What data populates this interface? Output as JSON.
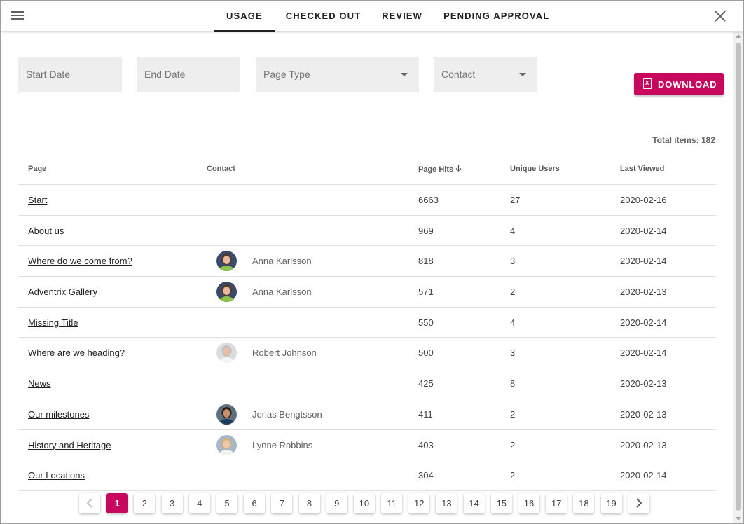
{
  "tabs": [
    {
      "label": "USAGE",
      "active": true
    },
    {
      "label": "CHECKED OUT",
      "active": false
    },
    {
      "label": "REVIEW",
      "active": false
    },
    {
      "label": "PENDING APPROVAL",
      "active": false
    }
  ],
  "filters": {
    "start_date": "Start Date",
    "end_date": "End Date",
    "page_type": "Page Type",
    "contact": "Contact"
  },
  "download_label": "DOWNLOAD",
  "total_items": "Total items: 182",
  "table": {
    "headers": {
      "page": "Page",
      "contact": "Contact",
      "hits": "Page Hits",
      "users": "Unique Users",
      "last_viewed": "Last Viewed"
    },
    "rows": [
      {
        "page": "Start",
        "contact": "",
        "avatar": "",
        "hits": "6663",
        "users": "27",
        "date": "2020-02-16"
      },
      {
        "page": "About us",
        "contact": "",
        "avatar": "",
        "hits": "969",
        "users": "4",
        "date": "2020-02-14"
      },
      {
        "page": "Where do we come from?",
        "contact": "Anna Karlsson",
        "avatar": "female-green",
        "hits": "818",
        "users": "3",
        "date": "2020-02-14"
      },
      {
        "page": "Adventrix Gallery",
        "contact": "Anna Karlsson",
        "avatar": "female-green",
        "hits": "571",
        "users": "2",
        "date": "2020-02-13"
      },
      {
        "page": "Missing Title",
        "contact": "",
        "avatar": "",
        "hits": "550",
        "users": "4",
        "date": "2020-02-14"
      },
      {
        "page": "Where are we heading?",
        "contact": "Robert Johnson",
        "avatar": "male-gray",
        "hits": "500",
        "users": "3",
        "date": "2020-02-14"
      },
      {
        "page": "News",
        "contact": "",
        "avatar": "",
        "hits": "425",
        "users": "8",
        "date": "2020-02-13"
      },
      {
        "page": "Our milestones",
        "contact": "Jonas Bengtsson",
        "avatar": "male-dark",
        "hits": "411",
        "users": "2",
        "date": "2020-02-13"
      },
      {
        "page": "History and Heritage",
        "contact": "Lynne Robbins",
        "avatar": "female-blonde",
        "hits": "403",
        "users": "2",
        "date": "2020-02-13"
      },
      {
        "page": "Our Locations",
        "contact": "",
        "avatar": "",
        "hits": "304",
        "users": "2",
        "date": "2020-02-14"
      }
    ]
  },
  "pagination": {
    "prev_icon": "chevron-left-icon",
    "next_icon": "chevron-right-icon",
    "pages": [
      "1",
      "2",
      "3",
      "4",
      "5",
      "6",
      "7",
      "8",
      "9",
      "10",
      "11",
      "12",
      "13",
      "14",
      "15",
      "16",
      "17",
      "18",
      "19"
    ],
    "current": "1"
  },
  "colors": {
    "accent": "#c8075e"
  }
}
